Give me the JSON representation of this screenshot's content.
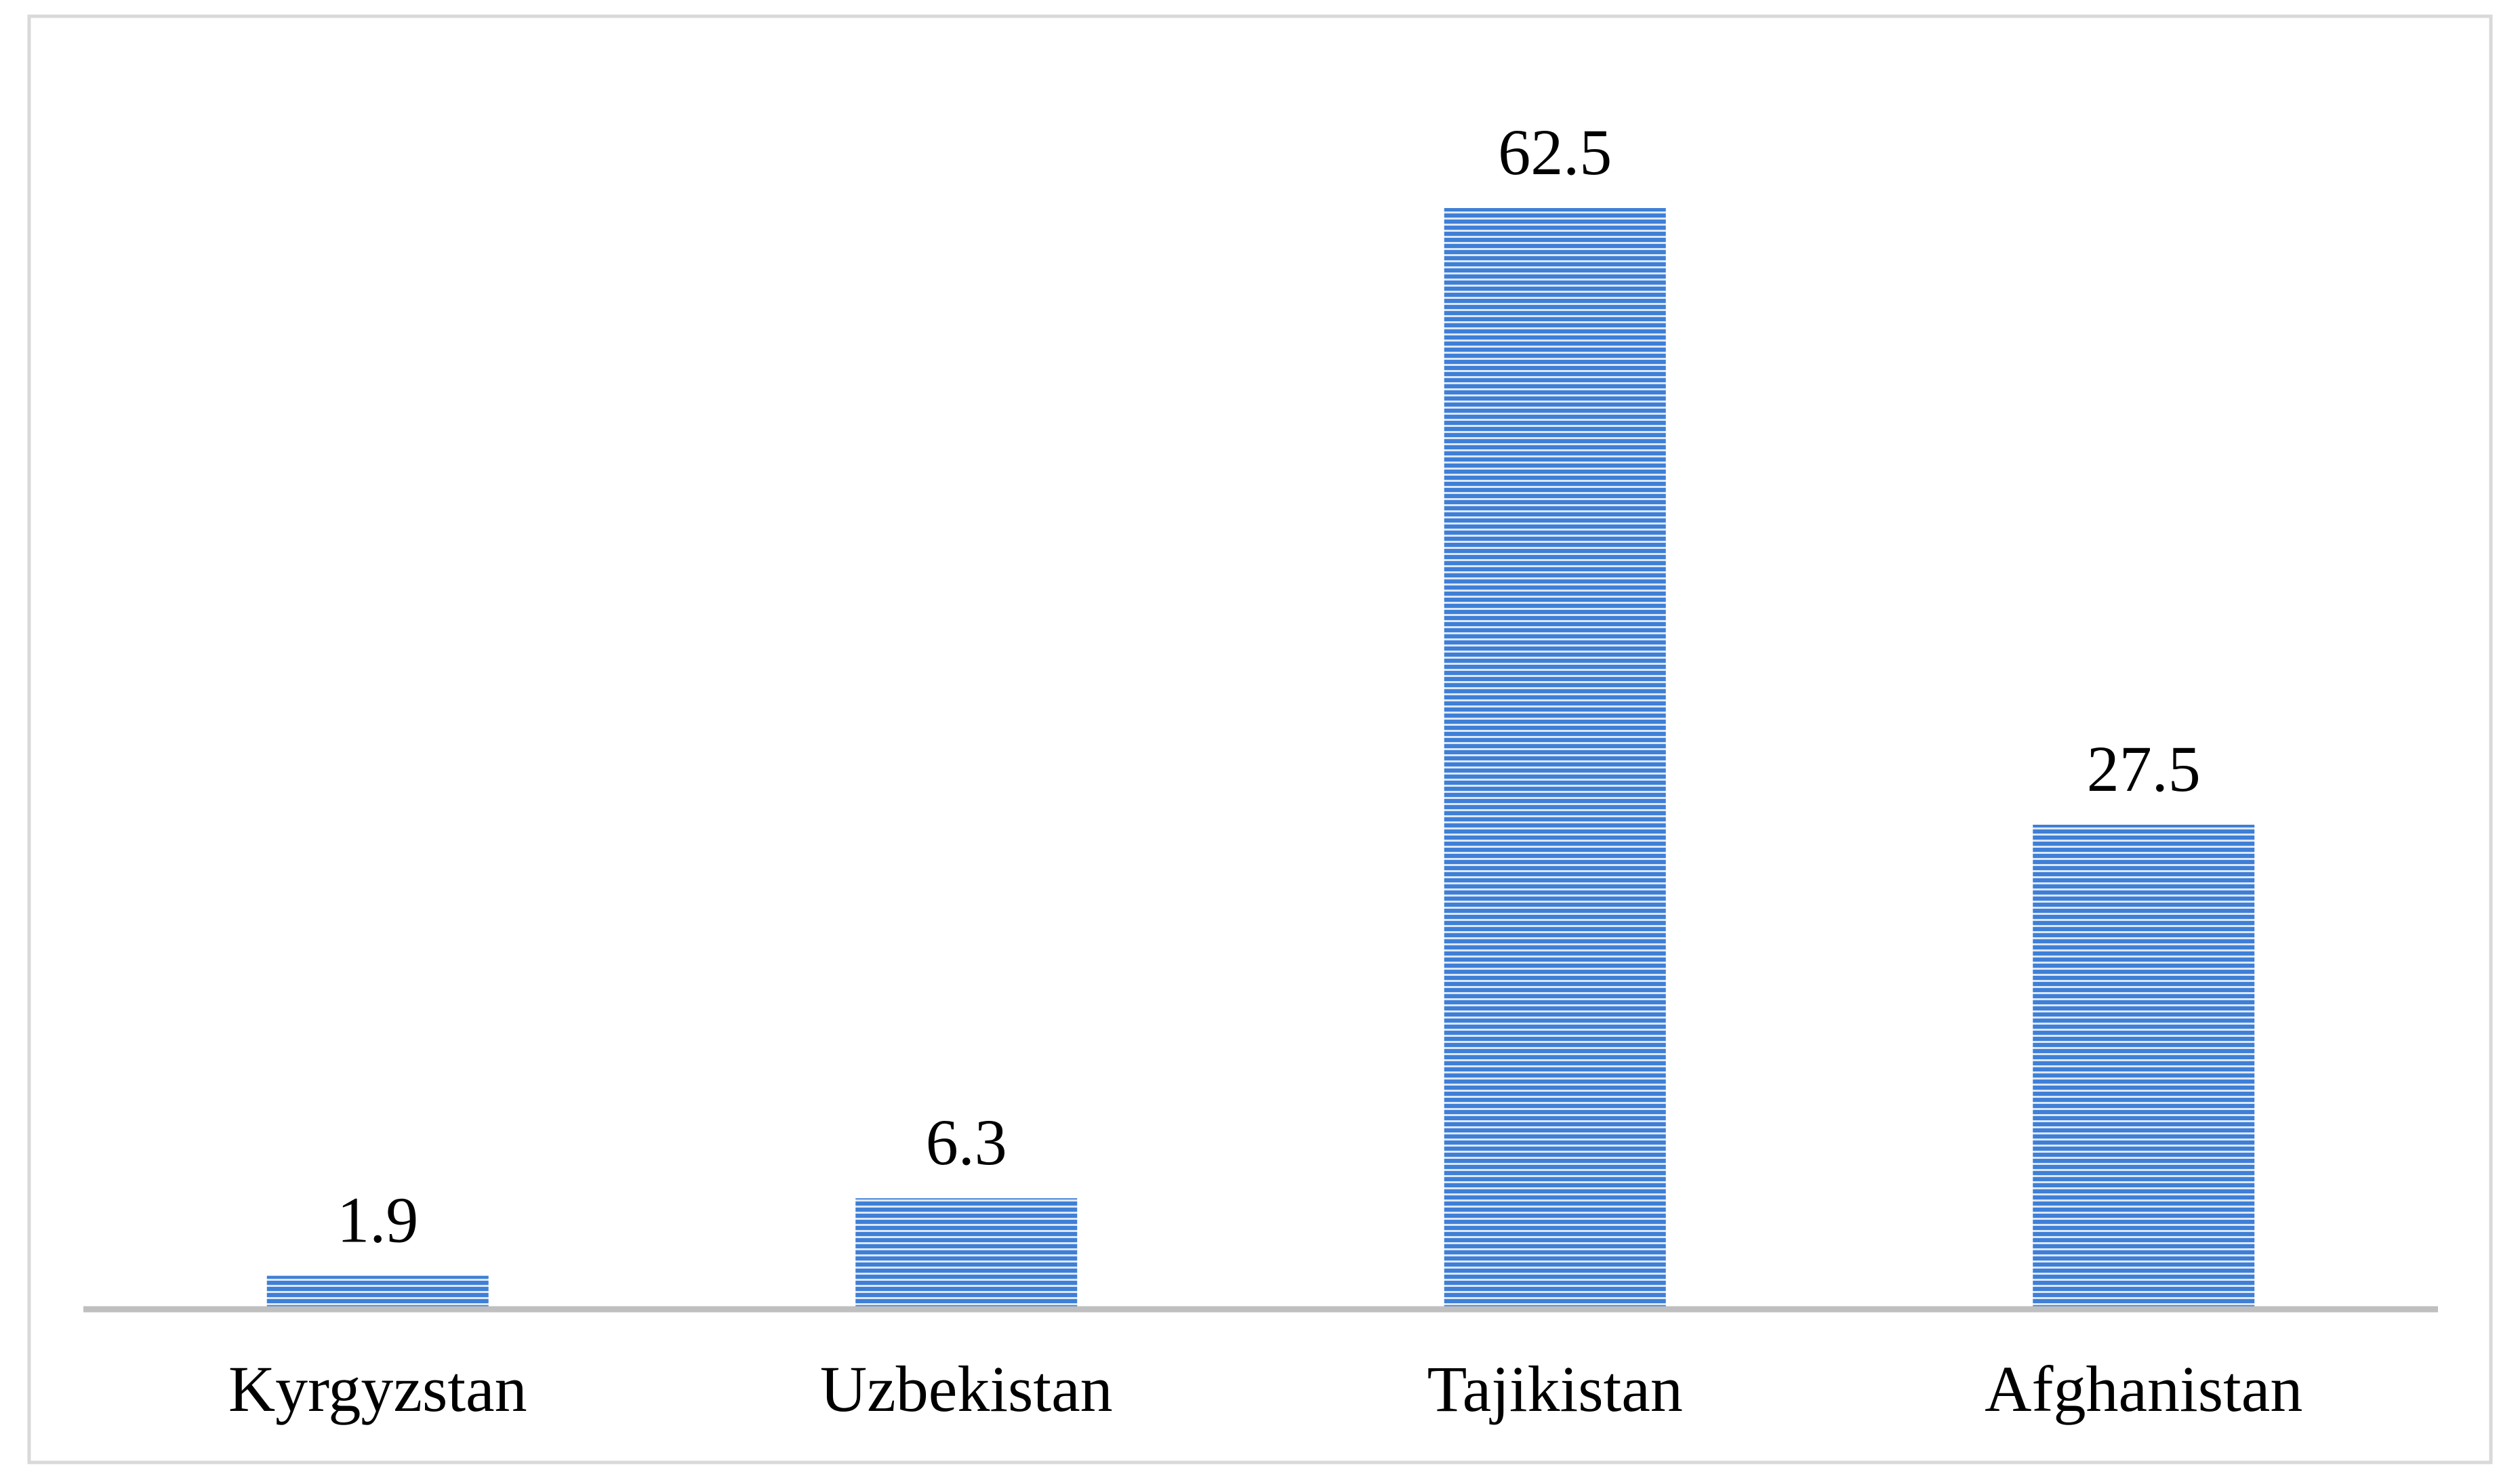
{
  "chart_data": {
    "type": "bar",
    "categories": [
      "Kyrgyzstan",
      "Uzbekistan",
      "Tajikistan",
      "Afghanistan"
    ],
    "values": [
      1.9,
      6.3,
      62.5,
      27.5
    ],
    "color": "#3f7fd6"
  }
}
